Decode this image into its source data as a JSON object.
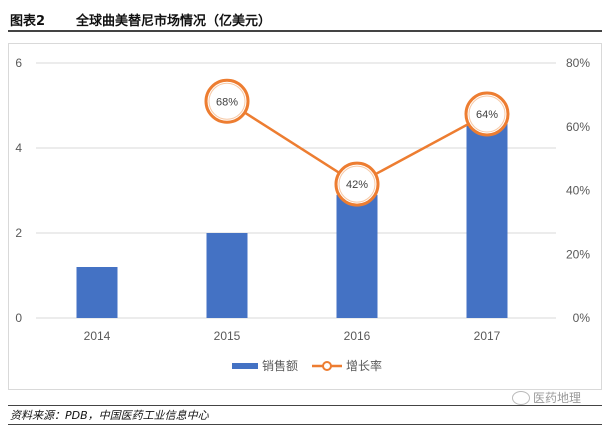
{
  "header": {
    "figure_label": "图表2",
    "title": "全球曲美替尼市场情况（亿美元）"
  },
  "chart_data": {
    "type": "bar+line",
    "title": "全球曲美替尼市场情况（亿美元）",
    "categories": [
      "2014",
      "2015",
      "2016",
      "2017"
    ],
    "series": [
      {
        "name": "销售额",
        "type": "bar",
        "axis": "left",
        "color": "#4472C4",
        "values": [
          1.2,
          2.0,
          2.9,
          4.7
        ]
      },
      {
        "name": "增长率",
        "type": "line",
        "axis": "right",
        "color": "#ED7D31",
        "values": [
          null,
          68,
          42,
          64
        ],
        "labels": [
          "",
          "68%",
          "42%",
          "64%"
        ]
      }
    ],
    "left_axis": {
      "ylim": [
        0,
        6
      ],
      "ticks": [
        "0",
        "2",
        "4",
        "6"
      ]
    },
    "right_axis": {
      "ylim": [
        0,
        80
      ],
      "ticks": [
        "0%",
        "20%",
        "40%",
        "60%",
        "80%"
      ]
    },
    "xlabel": "",
    "ylabel": "",
    "grid": true,
    "legend_position": "bottom"
  },
  "legend": {
    "items": [
      {
        "label": "销售额",
        "type": "bar"
      },
      {
        "label": "增长率",
        "type": "line"
      }
    ]
  },
  "footer": {
    "source": "资料来源：PDB，中国医药工业信息中心",
    "watermark": "医药地理"
  }
}
